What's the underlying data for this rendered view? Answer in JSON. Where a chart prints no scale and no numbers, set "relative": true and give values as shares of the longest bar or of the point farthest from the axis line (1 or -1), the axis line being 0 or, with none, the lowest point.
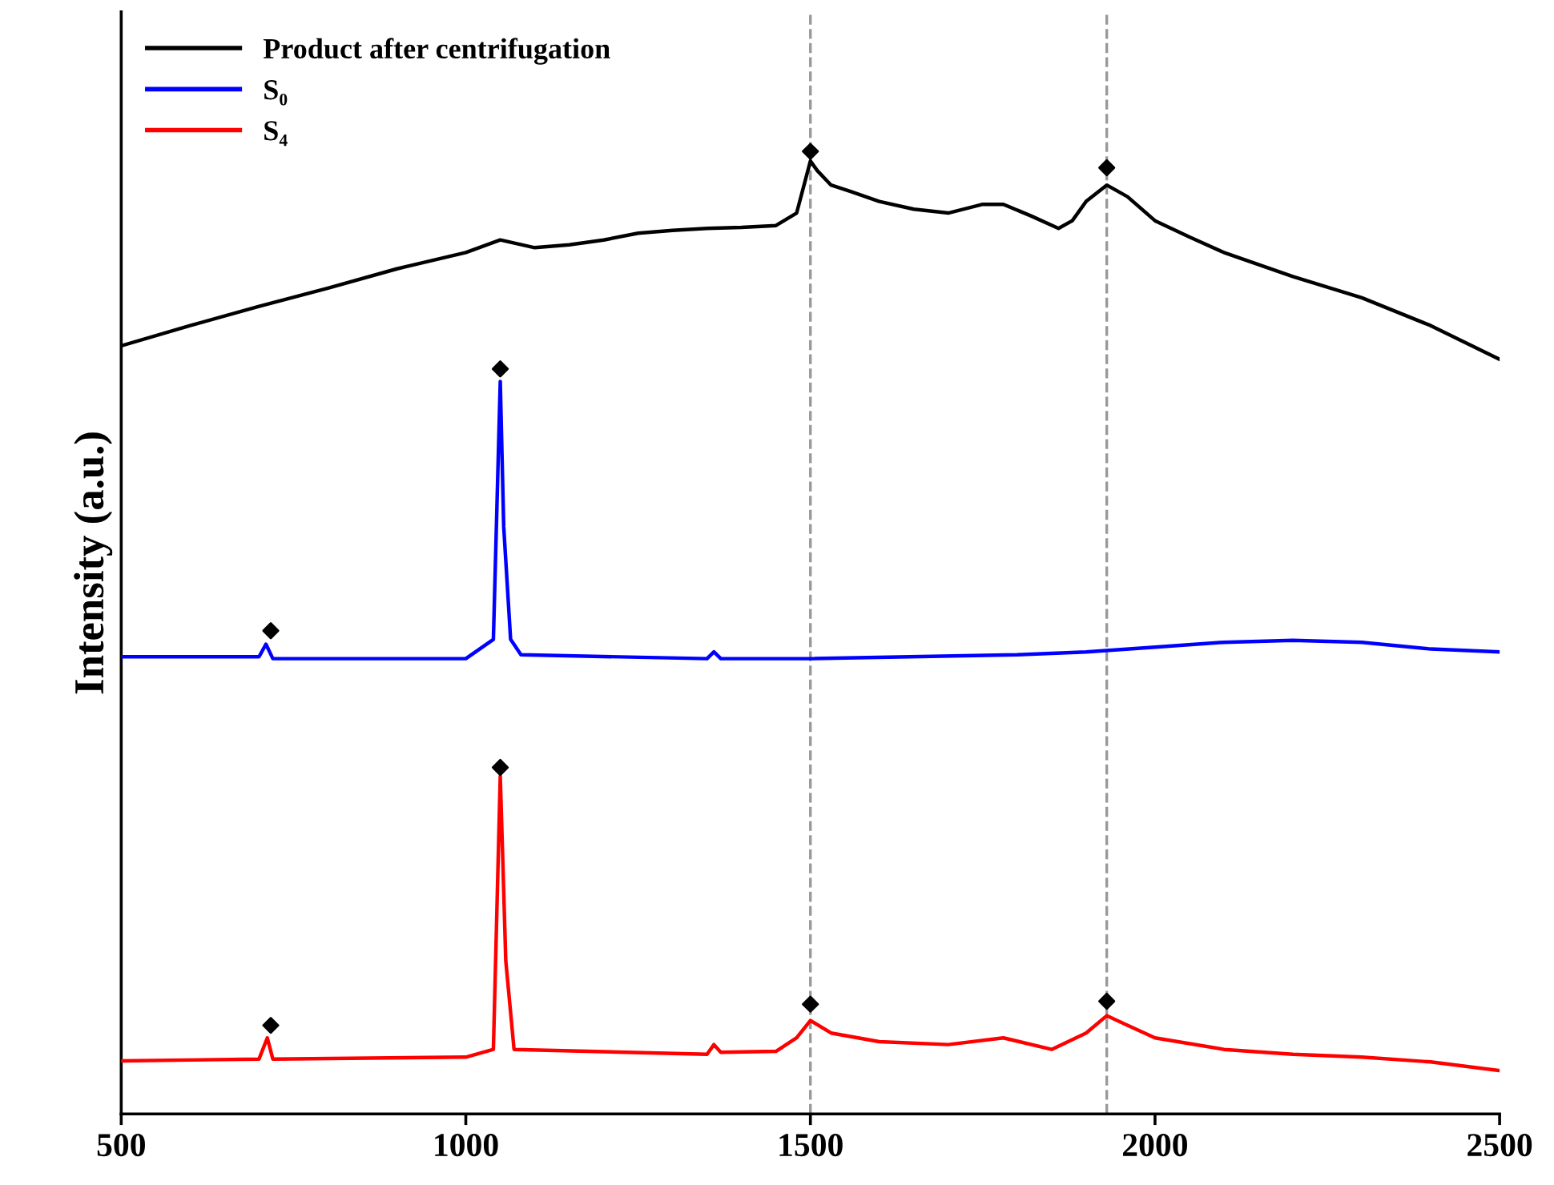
{
  "chart_data": {
    "type": "line",
    "relative": true,
    "ylabel": "Intensity (a.u.)",
    "xlim": [
      500,
      2500
    ],
    "xticks": [
      500,
      1000,
      1500,
      2000,
      2500
    ],
    "tick_labels": "x",
    "grid": false,
    "legend": "top left",
    "line_style": "solid",
    "marker": "none",
    "ref_lines": [
      {
        "axis": "x",
        "value": 1500,
        "color": "#999999",
        "line_style": "dashed"
      },
      {
        "axis": "x",
        "value": 1930,
        "color": "#999999",
        "line_style": "dashed"
      }
    ],
    "series": [
      {
        "name": "Product after centrifugation",
        "color": "#000000",
        "x": [
          500,
          600,
          700,
          800,
          900,
          1000,
          1050,
          1100,
          1150,
          1200,
          1250,
          1300,
          1350,
          1400,
          1450,
          1480,
          1500,
          1510,
          1530,
          1560,
          1600,
          1650,
          1700,
          1750,
          1780,
          1820,
          1860,
          1880,
          1900,
          1930,
          1960,
          2000,
          2050,
          2100,
          2200,
          2300,
          2400,
          2500
        ],
        "values": [
          0.798,
          0.819,
          0.839,
          0.858,
          0.878,
          0.895,
          0.908,
          0.9,
          0.903,
          0.908,
          0.915,
          0.918,
          0.92,
          0.921,
          0.923,
          0.936,
          0.99,
          0.98,
          0.965,
          0.958,
          0.948,
          0.94,
          0.936,
          0.945,
          0.945,
          0.933,
          0.92,
          0.928,
          0.948,
          0.965,
          0.953,
          0.928,
          0.911,
          0.895,
          0.87,
          0.848,
          0.819,
          0.784
        ]
      },
      {
        "name": "S₀",
        "color": "#0000ff",
        "x": [
          500,
          700,
          710,
          720,
          1000,
          1040,
          1050,
          1055,
          1065,
          1080,
          1350,
          1360,
          1370,
          1500,
          1800,
          1900,
          2000,
          2100,
          2200,
          2300,
          2400,
          2500
        ],
        "values": [
          0.475,
          0.475,
          0.488,
          0.473,
          0.473,
          0.493,
          0.761,
          0.61,
          0.493,
          0.477,
          0.473,
          0.48,
          0.473,
          0.473,
          0.477,
          0.48,
          0.485,
          0.49,
          0.492,
          0.49,
          0.483,
          0.48
        ]
      },
      {
        "name": "S₄",
        "color": "#ff0000",
        "x": [
          500,
          700,
          712,
          720,
          1000,
          1040,
          1050,
          1058,
          1070,
          1350,
          1360,
          1370,
          1450,
          1480,
          1500,
          1530,
          1600,
          1700,
          1780,
          1850,
          1900,
          1930,
          1960,
          2000,
          2100,
          2200,
          2300,
          2400,
          2500
        ],
        "values": [
          0.055,
          0.057,
          0.079,
          0.057,
          0.059,
          0.067,
          0.351,
          0.159,
          0.067,
          0.062,
          0.072,
          0.064,
          0.065,
          0.079,
          0.097,
          0.084,
          0.075,
          0.072,
          0.079,
          0.067,
          0.084,
          0.102,
          0.092,
          0.079,
          0.067,
          0.062,
          0.059,
          0.054,
          0.045
        ]
      },
      {
        "type": "scatter",
        "marker": "diamond",
        "color": "#000000",
        "x": [
          1500,
          1930,
          1050,
          717,
          1050,
          717,
          1500,
          1930
        ],
        "values": [
          1.0,
          0.983,
          0.774,
          0.502,
          0.36,
          0.092,
          0.114,
          0.117
        ]
      }
    ]
  }
}
